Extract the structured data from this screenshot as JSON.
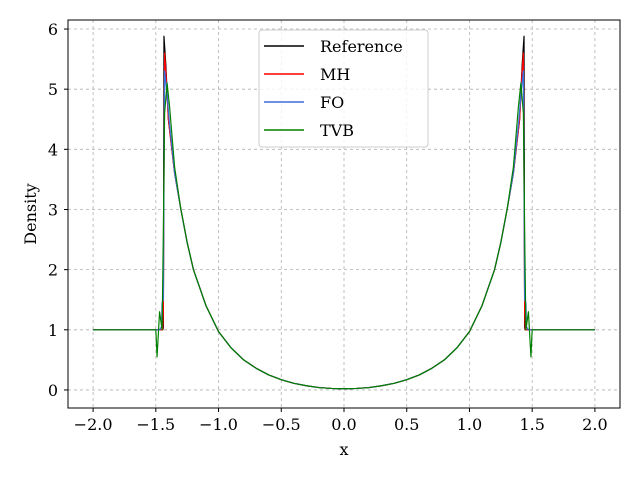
{
  "chart_data": {
    "type": "line",
    "title": "",
    "xlabel": "x",
    "ylabel": "Density",
    "xlim": [
      -2.2,
      2.2
    ],
    "ylim": [
      -0.3,
      6.15
    ],
    "xticks": [
      -2.0,
      -1.5,
      -1.0,
      -0.5,
      0.0,
      0.5,
      1.0,
      1.5,
      2.0
    ],
    "xtick_labels": [
      "−2.0",
      "−1.5",
      "−1.0",
      "−0.5",
      "0.0",
      "0.5",
      "1.0",
      "1.5",
      "2.0"
    ],
    "yticks": [
      0,
      1,
      2,
      3,
      4,
      5,
      6
    ],
    "ytick_labels": [
      "0",
      "1",
      "2",
      "3",
      "4",
      "5",
      "6"
    ],
    "grid": true,
    "legend_position": "top-center",
    "series": [
      {
        "name": "Reference",
        "color": "#000000",
        "points": [
          [
            -2.0,
            1.0
          ],
          [
            -1.45,
            1.0
          ],
          [
            -1.445,
            1.0
          ],
          [
            -1.44,
            1.03
          ],
          [
            -1.435,
            5.88
          ],
          [
            -1.42,
            5.4
          ],
          [
            -1.4,
            4.5
          ],
          [
            -1.35,
            3.6
          ],
          [
            -1.3,
            3.0
          ],
          [
            -1.25,
            2.45
          ],
          [
            -1.2,
            2.0
          ],
          [
            -1.1,
            1.4
          ],
          [
            -1.0,
            0.97
          ],
          [
            -0.9,
            0.7
          ],
          [
            -0.8,
            0.5
          ],
          [
            -0.7,
            0.36
          ],
          [
            -0.6,
            0.25
          ],
          [
            -0.5,
            0.17
          ],
          [
            -0.4,
            0.11
          ],
          [
            -0.3,
            0.07
          ],
          [
            -0.2,
            0.04
          ],
          [
            -0.1,
            0.025
          ],
          [
            0.0,
            0.02
          ],
          [
            0.1,
            0.025
          ],
          [
            0.2,
            0.04
          ],
          [
            0.3,
            0.07
          ],
          [
            0.4,
            0.11
          ],
          [
            0.5,
            0.17
          ],
          [
            0.6,
            0.25
          ],
          [
            0.7,
            0.36
          ],
          [
            0.8,
            0.5
          ],
          [
            0.9,
            0.7
          ],
          [
            1.0,
            0.97
          ],
          [
            1.1,
            1.4
          ],
          [
            1.2,
            2.0
          ],
          [
            1.25,
            2.45
          ],
          [
            1.3,
            3.0
          ],
          [
            1.35,
            3.6
          ],
          [
            1.4,
            4.5
          ],
          [
            1.42,
            5.4
          ],
          [
            1.435,
            5.88
          ],
          [
            1.44,
            1.03
          ],
          [
            1.445,
            1.0
          ],
          [
            1.45,
            1.0
          ],
          [
            2.0,
            1.0
          ]
        ]
      },
      {
        "name": "MH",
        "color": "#ff0000",
        "points": [
          [
            -2.0,
            1.0
          ],
          [
            -1.46,
            1.0
          ],
          [
            -1.445,
            1.0
          ],
          [
            -1.44,
            1.3
          ],
          [
            -1.43,
            5.6
          ],
          [
            -1.42,
            5.3
          ],
          [
            -1.4,
            4.5
          ],
          [
            -1.35,
            3.6
          ],
          [
            -1.3,
            3.0
          ],
          [
            -1.25,
            2.45
          ],
          [
            -1.2,
            2.0
          ],
          [
            -1.1,
            1.4
          ],
          [
            -1.0,
            0.97
          ],
          [
            -0.9,
            0.7
          ],
          [
            -0.8,
            0.5
          ],
          [
            -0.7,
            0.36
          ],
          [
            -0.6,
            0.25
          ],
          [
            -0.5,
            0.17
          ],
          [
            -0.4,
            0.11
          ],
          [
            -0.3,
            0.07
          ],
          [
            -0.2,
            0.04
          ],
          [
            -0.1,
            0.025
          ],
          [
            0.0,
            0.02
          ],
          [
            0.1,
            0.025
          ],
          [
            0.2,
            0.04
          ],
          [
            0.3,
            0.07
          ],
          [
            0.4,
            0.11
          ],
          [
            0.5,
            0.17
          ],
          [
            0.6,
            0.25
          ],
          [
            0.7,
            0.36
          ],
          [
            0.8,
            0.5
          ],
          [
            0.9,
            0.7
          ],
          [
            1.0,
            0.97
          ],
          [
            1.1,
            1.4
          ],
          [
            1.2,
            2.0
          ],
          [
            1.25,
            2.45
          ],
          [
            1.3,
            3.0
          ],
          [
            1.35,
            3.6
          ],
          [
            1.4,
            4.5
          ],
          [
            1.42,
            5.3
          ],
          [
            1.43,
            5.6
          ],
          [
            1.44,
            1.3
          ],
          [
            1.445,
            1.0
          ],
          [
            1.46,
            1.0
          ],
          [
            2.0,
            1.0
          ]
        ]
      },
      {
        "name": "FO",
        "color": "#3b6fe0",
        "points": [
          [
            -2.0,
            1.0
          ],
          [
            -1.47,
            1.0
          ],
          [
            -1.455,
            1.05
          ],
          [
            -1.45,
            1.45
          ],
          [
            -1.44,
            1.5
          ],
          [
            -1.43,
            5.3
          ],
          [
            -1.41,
            4.9
          ],
          [
            -1.39,
            4.4
          ],
          [
            -1.35,
            3.6
          ],
          [
            -1.3,
            3.0
          ],
          [
            -1.25,
            2.45
          ],
          [
            -1.2,
            2.0
          ],
          [
            -1.1,
            1.4
          ],
          [
            -1.0,
            0.97
          ],
          [
            -0.9,
            0.7
          ],
          [
            -0.8,
            0.5
          ],
          [
            -0.7,
            0.36
          ],
          [
            -0.6,
            0.25
          ],
          [
            -0.5,
            0.17
          ],
          [
            -0.4,
            0.11
          ],
          [
            -0.3,
            0.07
          ],
          [
            -0.2,
            0.04
          ],
          [
            -0.1,
            0.025
          ],
          [
            0.0,
            0.02
          ],
          [
            0.1,
            0.025
          ],
          [
            0.2,
            0.04
          ],
          [
            0.3,
            0.07
          ],
          [
            0.4,
            0.11
          ],
          [
            0.5,
            0.17
          ],
          [
            0.6,
            0.25
          ],
          [
            0.7,
            0.36
          ],
          [
            0.8,
            0.5
          ],
          [
            0.9,
            0.7
          ],
          [
            1.0,
            0.97
          ],
          [
            1.1,
            1.4
          ],
          [
            1.2,
            2.0
          ],
          [
            1.25,
            2.45
          ],
          [
            1.3,
            3.0
          ],
          [
            1.35,
            3.6
          ],
          [
            1.39,
            4.4
          ],
          [
            1.41,
            4.9
          ],
          [
            1.43,
            5.3
          ],
          [
            1.44,
            1.5
          ],
          [
            1.45,
            1.45
          ],
          [
            1.455,
            1.05
          ],
          [
            1.47,
            1.0
          ],
          [
            2.0,
            1.0
          ]
        ]
      },
      {
        "name": "TVB",
        "color": "#008000",
        "points": [
          [
            -2.0,
            1.0
          ],
          [
            -1.5,
            1.0
          ],
          [
            -1.49,
            0.55
          ],
          [
            -1.47,
            1.3
          ],
          [
            -1.45,
            1.0
          ],
          [
            -1.44,
            2.6
          ],
          [
            -1.43,
            4.6
          ],
          [
            -1.41,
            5.1
          ],
          [
            -1.39,
            4.7
          ],
          [
            -1.35,
            3.7
          ],
          [
            -1.3,
            3.0
          ],
          [
            -1.25,
            2.45
          ],
          [
            -1.2,
            2.0
          ],
          [
            -1.1,
            1.4
          ],
          [
            -1.0,
            0.97
          ],
          [
            -0.9,
            0.7
          ],
          [
            -0.8,
            0.5
          ],
          [
            -0.7,
            0.36
          ],
          [
            -0.6,
            0.25
          ],
          [
            -0.5,
            0.17
          ],
          [
            -0.4,
            0.11
          ],
          [
            -0.3,
            0.07
          ],
          [
            -0.2,
            0.04
          ],
          [
            -0.1,
            0.025
          ],
          [
            0.0,
            0.02
          ],
          [
            0.1,
            0.025
          ],
          [
            0.2,
            0.04
          ],
          [
            0.3,
            0.07
          ],
          [
            0.4,
            0.11
          ],
          [
            0.5,
            0.17
          ],
          [
            0.6,
            0.25
          ],
          [
            0.7,
            0.36
          ],
          [
            0.8,
            0.5
          ],
          [
            0.9,
            0.7
          ],
          [
            1.0,
            0.97
          ],
          [
            1.1,
            1.4
          ],
          [
            1.2,
            2.0
          ],
          [
            1.25,
            2.45
          ],
          [
            1.3,
            3.0
          ],
          [
            1.35,
            3.7
          ],
          [
            1.39,
            4.7
          ],
          [
            1.41,
            5.1
          ],
          [
            1.43,
            4.6
          ],
          [
            1.44,
            2.6
          ],
          [
            1.45,
            1.0
          ],
          [
            1.47,
            1.3
          ],
          [
            1.49,
            0.55
          ],
          [
            1.5,
            1.0
          ],
          [
            2.0,
            1.0
          ]
        ]
      }
    ]
  }
}
